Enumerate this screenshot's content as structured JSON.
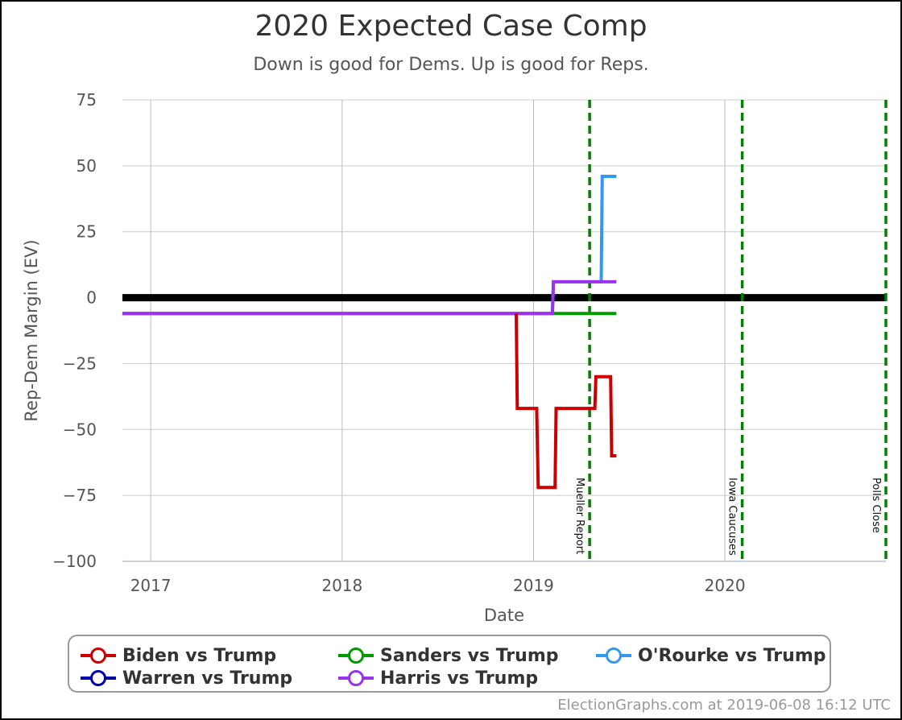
{
  "chart_data": {
    "type": "line",
    "title": "2020 Expected Case Comp",
    "subtitle": "Down is good for Dems. Up is good for Reps.",
    "xlabel": "Date",
    "ylabel": "Rep-Dem Margin (EV)",
    "x_range": [
      "2016-11-08",
      "2020-11-03"
    ],
    "ylim": [
      -100,
      75
    ],
    "x_ticks": [
      {
        "date": "2017-01-01",
        "label": "2017"
      },
      {
        "date": "2018-01-01",
        "label": "2018"
      },
      {
        "date": "2019-01-01",
        "label": "2019"
      },
      {
        "date": "2020-01-01",
        "label": "2020"
      }
    ],
    "y_ticks": [
      {
        "value": 75,
        "label": "75"
      },
      {
        "value": 50,
        "label": "50"
      },
      {
        "value": 25,
        "label": "25"
      },
      {
        "value": 0,
        "label": "0"
      },
      {
        "value": -25,
        "label": "−25"
      },
      {
        "value": -50,
        "label": "−50"
      },
      {
        "value": -75,
        "label": "−75"
      },
      {
        "value": -100,
        "label": "−100"
      }
    ],
    "grid": true,
    "zero_line_color": "#000000",
    "events": [
      {
        "date": "2019-04-18",
        "label": "Mueller Report",
        "color": "#008000"
      },
      {
        "date": "2020-02-03",
        "label": "Iowa Caucuses",
        "color": "#008000"
      },
      {
        "date": "2020-11-03",
        "label": "Polls Close",
        "color": "#008000"
      }
    ],
    "series": [
      {
        "name": "Biden vs Trump",
        "color": "#cc0000",
        "step": true,
        "points": [
          [
            "2018-11-29",
            -6
          ],
          [
            "2018-12-01",
            -42
          ],
          [
            "2019-01-07",
            -42
          ],
          [
            "2019-01-10",
            -72
          ],
          [
            "2019-02-11",
            -72
          ],
          [
            "2019-02-13",
            -42
          ],
          [
            "2019-04-28",
            -42
          ],
          [
            "2019-04-30",
            -30
          ],
          [
            "2019-05-28",
            -30
          ],
          [
            "2019-05-30",
            -60
          ],
          [
            "2019-06-08",
            -60
          ]
        ]
      },
      {
        "name": "Sanders vs Trump",
        "color": "#009900",
        "step": true,
        "points": [
          [
            "2016-11-08",
            -6
          ],
          [
            "2019-06-08",
            -6
          ]
        ]
      },
      {
        "name": "O'Rourke vs Trump",
        "color": "#3399ee",
        "step": true,
        "points": [
          [
            "2016-11-08",
            -6
          ],
          [
            "2019-02-06",
            -6
          ],
          [
            "2019-02-08",
            6
          ],
          [
            "2019-05-10",
            6
          ],
          [
            "2019-05-12",
            46
          ],
          [
            "2019-06-08",
            46
          ]
        ]
      },
      {
        "name": "Warren vs Trump",
        "color": "#0000aa",
        "step": true,
        "points": [
          [
            "2016-11-08",
            -6
          ],
          [
            "2019-06-08",
            -6
          ]
        ]
      },
      {
        "name": "Harris vs Trump",
        "color": "#9933ee",
        "step": true,
        "points": [
          [
            "2016-11-08",
            -6
          ],
          [
            "2019-02-06",
            -6
          ],
          [
            "2019-02-08",
            6
          ],
          [
            "2019-06-08",
            6
          ]
        ]
      }
    ],
    "legend": {
      "placement": "bottom",
      "columns": 3
    }
  },
  "credit": "ElectionGraphs.com at 2019-06-08 16:12 UTC"
}
